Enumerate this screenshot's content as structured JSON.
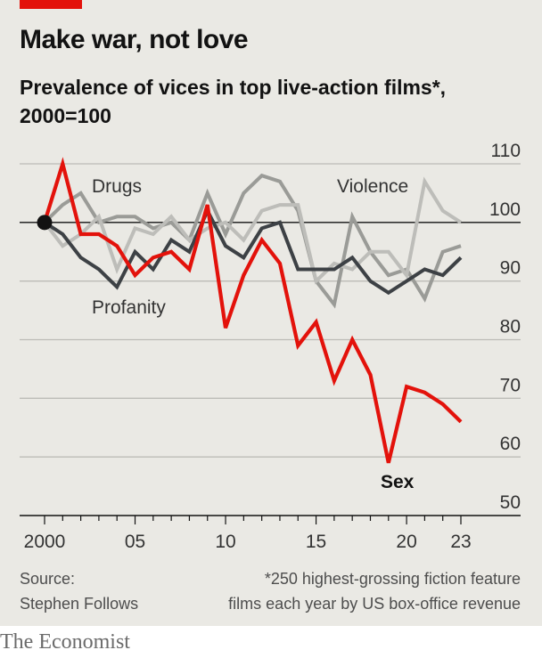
{
  "header": {
    "title": "Make war, not love",
    "subtitle_line1": "Prevalence of vices in top live-action films*,",
    "subtitle_line2": "2000=100"
  },
  "footer": {
    "source_line1": "Source:",
    "source_line2": "Stephen Follows",
    "note_line1": "*250 highest-grossing fiction feature",
    "note_line2": "films each year by US box-office revenue"
  },
  "brand": "The Economist",
  "colors": {
    "background": "#eae9e4",
    "sex": "#e3120b",
    "profanity": "#3d4145",
    "drugs": "#9a9b97",
    "violence": "#bdbdb9",
    "grid": "#bcbcb7"
  },
  "chart_data": {
    "type": "line",
    "x": [
      2000,
      2001,
      2002,
      2003,
      2004,
      2005,
      2006,
      2007,
      2008,
      2009,
      2010,
      2011,
      2012,
      2013,
      2014,
      2015,
      2016,
      2017,
      2018,
      2019,
      2020,
      2021,
      2022,
      2023
    ],
    "x_ticks": [
      2000,
      2005,
      2010,
      2015,
      2020,
      2023
    ],
    "x_tick_labels": [
      "2000",
      "05",
      "10",
      "15",
      "20",
      "23"
    ],
    "y_ticks": [
      50,
      60,
      70,
      80,
      90,
      100,
      110
    ],
    "y_tick_labels": [
      "50",
      "60",
      "70",
      "80",
      "90",
      "100",
      "110"
    ],
    "ylim": [
      50,
      110
    ],
    "baseline": 100,
    "series": [
      {
        "name": "Drugs",
        "key": "drugs",
        "values": [
          100,
          103,
          105,
          100,
          101,
          101,
          99,
          100,
          97,
          105,
          98,
          105,
          108,
          107,
          102,
          90,
          86,
          101,
          95,
          91,
          92,
          87,
          95,
          96
        ]
      },
      {
        "name": "Violence",
        "key": "violence",
        "values": [
          100,
          96,
          98,
          101,
          92,
          99,
          98,
          101,
          97,
          99,
          100,
          97,
          102,
          103,
          103,
          90,
          93,
          92,
          95,
          95,
          91,
          107,
          102,
          100
        ]
      },
      {
        "name": "Profanity",
        "key": "profanity",
        "values": [
          100,
          98,
          94,
          92,
          89,
          95,
          92,
          97,
          95,
          102,
          96,
          94,
          99,
          100,
          92,
          92,
          92,
          94,
          90,
          88,
          90,
          92,
          91,
          94
        ]
      },
      {
        "name": "Sex",
        "key": "sex",
        "values": [
          100,
          110,
          98,
          98,
          96,
          91,
          94,
          95,
          92,
          103,
          82,
          91,
          97,
          93,
          79,
          83,
          73,
          80,
          74,
          59,
          72,
          71,
          69,
          66
        ]
      }
    ],
    "labels": {
      "drugs": "Drugs",
      "violence": "Violence",
      "profanity": "Profanity",
      "sex": "Sex"
    }
  }
}
